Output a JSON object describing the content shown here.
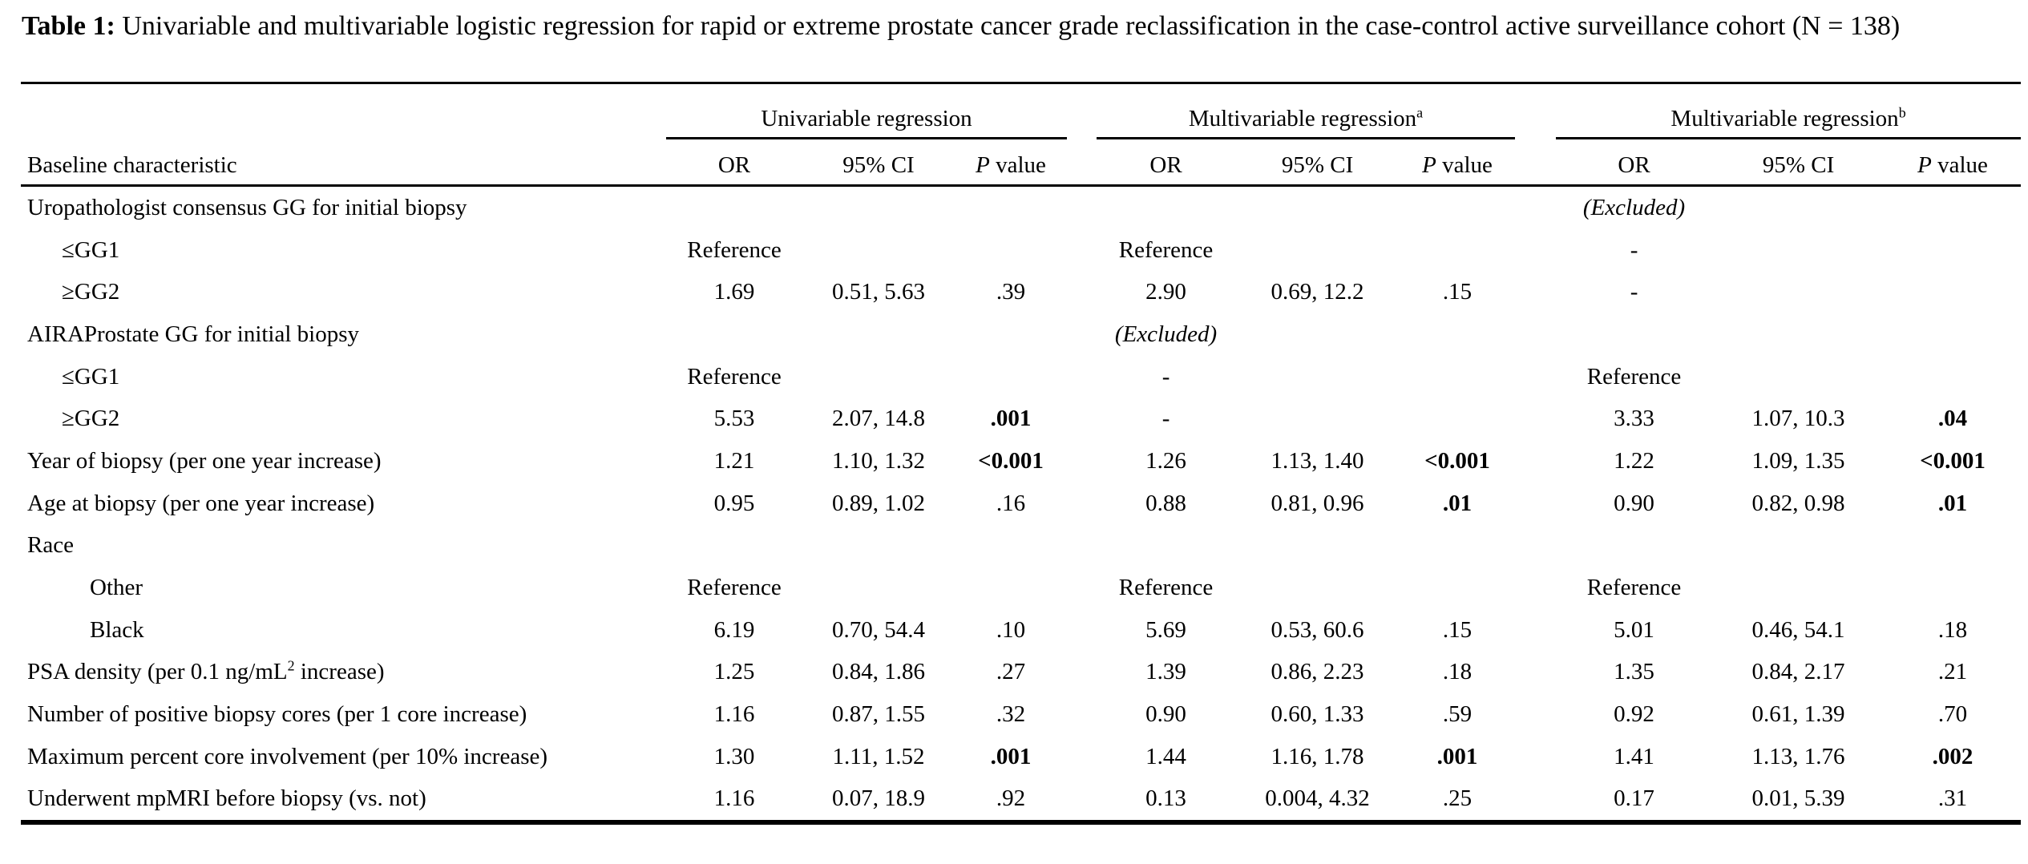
{
  "title": {
    "prefix": "Table 1:",
    "text": " Univariable and multivariable logistic regression for rapid or extreme prostate cancer grade reclassification in the case-control active surveillance cohort (N = 138)"
  },
  "table": {
    "baseline_header": "Baseline characteristic",
    "groups": [
      {
        "label": "Univariable regression",
        "sup": ""
      },
      {
        "label": "Multivariable regression",
        "sup": "a"
      },
      {
        "label": "Multivariable regression",
        "sup": "b"
      }
    ],
    "subheaders": {
      "or": "OR",
      "ci": "95% CI",
      "p_italic": "P",
      "p_rest": "value"
    },
    "rows": [
      {
        "label": "Uropathologist consensus GG for initial biopsy",
        "indent": 0,
        "cells": [
          {
            "t": ""
          },
          {
            "t": ""
          },
          {
            "t": ""
          },
          {
            "t": ""
          },
          {
            "t": ""
          },
          {
            "t": ""
          },
          {
            "t": "(Excluded)",
            "i": true
          },
          {
            "t": ""
          },
          {
            "t": ""
          }
        ]
      },
      {
        "label": "≤GG1",
        "indent": 1,
        "cells": [
          {
            "t": "Reference"
          },
          {
            "t": ""
          },
          {
            "t": ""
          },
          {
            "t": "Reference"
          },
          {
            "t": ""
          },
          {
            "t": ""
          },
          {
            "t": "-"
          },
          {
            "t": ""
          },
          {
            "t": ""
          }
        ]
      },
      {
        "label": "≥GG2",
        "indent": 1,
        "cells": [
          {
            "t": "1.69"
          },
          {
            "t": "0.51, 5.63"
          },
          {
            "t": ".39"
          },
          {
            "t": "2.90"
          },
          {
            "t": "0.69, 12.2"
          },
          {
            "t": ".15"
          },
          {
            "t": "-"
          },
          {
            "t": ""
          },
          {
            "t": ""
          }
        ]
      },
      {
        "label": "AIRAProstate GG for initial biopsy",
        "indent": 0,
        "cells": [
          {
            "t": ""
          },
          {
            "t": ""
          },
          {
            "t": ""
          },
          {
            "t": "(Excluded)",
            "i": true
          },
          {
            "t": ""
          },
          {
            "t": ""
          },
          {
            "t": ""
          },
          {
            "t": ""
          },
          {
            "t": ""
          }
        ]
      },
      {
        "label": "≤GG1",
        "indent": 1,
        "cells": [
          {
            "t": "Reference"
          },
          {
            "t": ""
          },
          {
            "t": ""
          },
          {
            "t": "-"
          },
          {
            "t": ""
          },
          {
            "t": ""
          },
          {
            "t": "Reference"
          },
          {
            "t": ""
          },
          {
            "t": ""
          }
        ]
      },
      {
        "label": "≥GG2",
        "indent": 1,
        "cells": [
          {
            "t": "5.53"
          },
          {
            "t": "2.07, 14.8"
          },
          {
            "t": ".001",
            "b": true
          },
          {
            "t": "-"
          },
          {
            "t": ""
          },
          {
            "t": ""
          },
          {
            "t": "3.33"
          },
          {
            "t": "1.07, 10.3"
          },
          {
            "t": ".04",
            "b": true
          }
        ]
      },
      {
        "label": "Year of biopsy (per one year increase)",
        "indent": 0,
        "cells": [
          {
            "t": "1.21"
          },
          {
            "t": "1.10, 1.32"
          },
          {
            "t": "<0.001",
            "b": true
          },
          {
            "t": "1.26"
          },
          {
            "t": "1.13, 1.40"
          },
          {
            "t": "<0.001",
            "b": true
          },
          {
            "t": "1.22"
          },
          {
            "t": "1.09, 1.35"
          },
          {
            "t": "<0.001",
            "b": true
          }
        ]
      },
      {
        "label": "Age at biopsy (per one year increase)",
        "indent": 0,
        "cells": [
          {
            "t": "0.95"
          },
          {
            "t": "0.89, 1.02"
          },
          {
            "t": ".16"
          },
          {
            "t": "0.88"
          },
          {
            "t": "0.81, 0.96"
          },
          {
            "t": ".01",
            "b": true
          },
          {
            "t": "0.90"
          },
          {
            "t": "0.82, 0.98"
          },
          {
            "t": ".01",
            "b": true
          }
        ]
      },
      {
        "label": "Race",
        "indent": 0,
        "cells": [
          {
            "t": ""
          },
          {
            "t": ""
          },
          {
            "t": ""
          },
          {
            "t": ""
          },
          {
            "t": ""
          },
          {
            "t": ""
          },
          {
            "t": ""
          },
          {
            "t": ""
          },
          {
            "t": ""
          }
        ]
      },
      {
        "label": "Other",
        "indent": 2,
        "cells": [
          {
            "t": "Reference"
          },
          {
            "t": ""
          },
          {
            "t": ""
          },
          {
            "t": "Reference"
          },
          {
            "t": ""
          },
          {
            "t": ""
          },
          {
            "t": "Reference"
          },
          {
            "t": ""
          },
          {
            "t": ""
          }
        ]
      },
      {
        "label": "Black",
        "indent": 2,
        "cells": [
          {
            "t": "6.19"
          },
          {
            "t": "0.70, 54.4"
          },
          {
            "t": ".10"
          },
          {
            "t": "5.69"
          },
          {
            "t": "0.53, 60.6"
          },
          {
            "t": ".15"
          },
          {
            "t": "5.01"
          },
          {
            "t": "0.46, 54.1"
          },
          {
            "t": ".18"
          }
        ]
      },
      {
        "label": "PSA density (per 0.1 ng/mL",
        "label_sup": "2",
        "label_post": " increase)",
        "indent": 0,
        "cells": [
          {
            "t": "1.25"
          },
          {
            "t": "0.84, 1.86"
          },
          {
            "t": ".27"
          },
          {
            "t": "1.39"
          },
          {
            "t": "0.86, 2.23"
          },
          {
            "t": ".18"
          },
          {
            "t": "1.35"
          },
          {
            "t": "0.84, 2.17"
          },
          {
            "t": ".21"
          }
        ]
      },
      {
        "label": "Number of positive biopsy cores (per 1 core increase)",
        "indent": 0,
        "cells": [
          {
            "t": "1.16"
          },
          {
            "t": "0.87, 1.55"
          },
          {
            "t": ".32"
          },
          {
            "t": "0.90"
          },
          {
            "t": "0.60, 1.33"
          },
          {
            "t": ".59"
          },
          {
            "t": "0.92"
          },
          {
            "t": "0.61, 1.39"
          },
          {
            "t": ".70"
          }
        ]
      },
      {
        "label": "Maximum percent core involvement (per 10% increase)",
        "indent": 0,
        "cells": [
          {
            "t": "1.30"
          },
          {
            "t": "1.11, 1.52"
          },
          {
            "t": ".001",
            "b": true
          },
          {
            "t": "1.44"
          },
          {
            "t": "1.16, 1.78"
          },
          {
            "t": ".001",
            "b": true
          },
          {
            "t": "1.41"
          },
          {
            "t": "1.13, 1.76"
          },
          {
            "t": ".002",
            "b": true
          }
        ]
      },
      {
        "label": "Underwent mpMRI before biopsy (vs. not)",
        "indent": 0,
        "cells": [
          {
            "t": "1.16"
          },
          {
            "t": "0.07, 18.9"
          },
          {
            "t": ".92"
          },
          {
            "t": "0.13"
          },
          {
            "t": "0.004, 4.32"
          },
          {
            "t": ".25"
          },
          {
            "t": "0.17"
          },
          {
            "t": "0.01, 5.39"
          },
          {
            "t": ".31"
          }
        ]
      }
    ]
  }
}
